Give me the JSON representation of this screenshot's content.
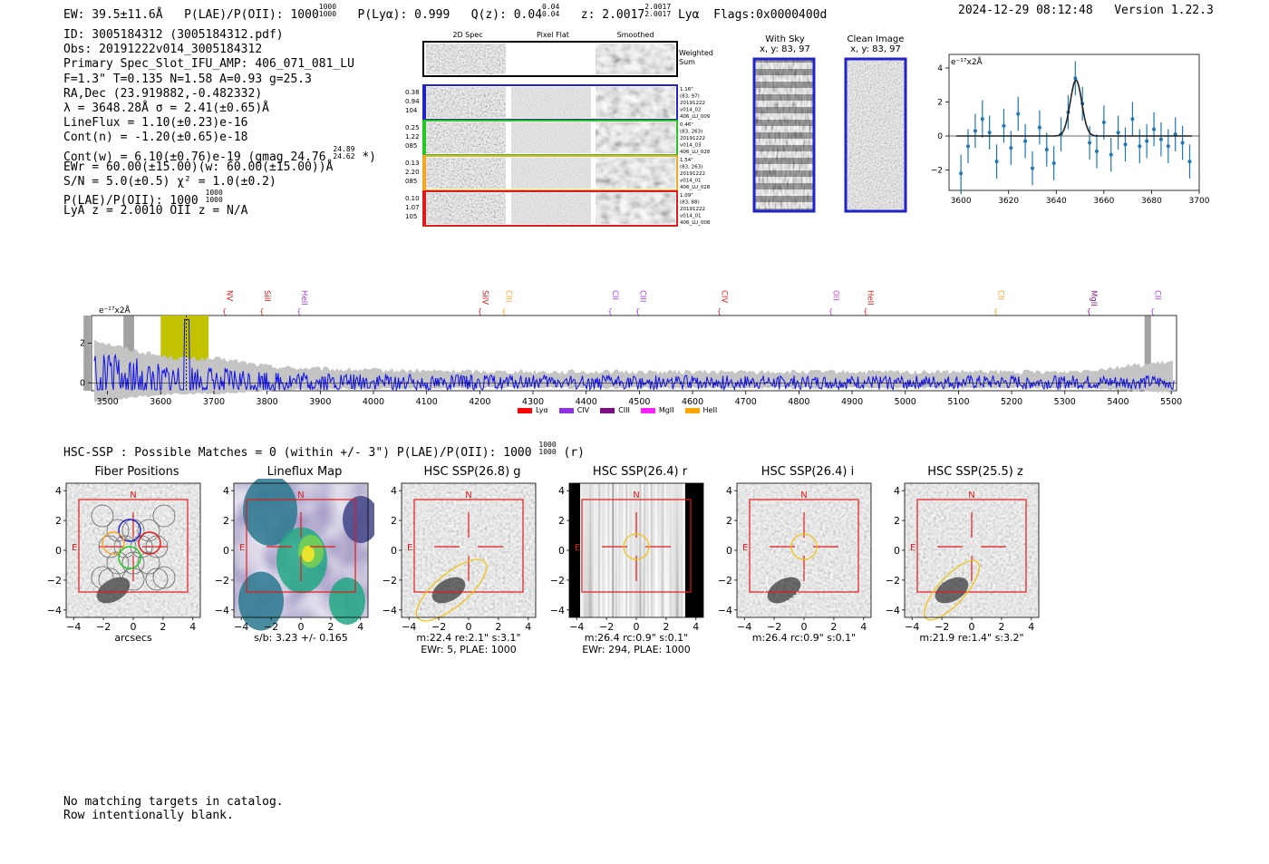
{
  "header": {
    "ew": "EW: 39.5±11.6Å",
    "plae_label": "P(LAE)/P(OII): 1000",
    "plae_hi": "1000",
    "plae_lo": "1000",
    "plya": "P(Lyα): 0.999",
    "qz_label": "Q(z): 0.04",
    "qz_hi": "0.04",
    "qz_lo": "0.04",
    "z_label": "z: 2.0017",
    "z_hi": "2.0017",
    "z_lo": "2.0017",
    "lya": "Lyα",
    "flags": "Flags:0x0000400d",
    "timestamp": "2024-12-29 08:12:48",
    "version": "Version 1.22.3"
  },
  "info": {
    "id": "ID: 3005184312 (3005184312.pdf)",
    "obs": "Obs: 20191222v014_3005184312",
    "primary": "Primary Spec_Slot_IFU_AMP: 406_071_081_LU",
    "fwhm": "F=1.3\"  T=0.135  N=1.58  A=0.93  g=25.3",
    "radec": "RA,Dec (23.919882,-0.482332)",
    "lambda": "λ = 3648.28Å  σ = 2.41(±0.65)Å",
    "lineflux": "LineFlux = 1.10(±0.23)e-16",
    "contn": "Cont(n) = -1.20(±0.65)e-18",
    "contw": "Cont(w) = 6.10(±0.76)e-19 (gmag 24.76",
    "contw_hi": "24.89",
    "contw_lo": "24.62",
    "contw_end": "*)",
    "ewr": "EWr = 60.00(±15.00)(w: 60.00(±15.00))Å",
    "sn": "S/N = 5.0(±0.5)  χ² = 1.0(±0.2)",
    "plae": "P(LAE)/P(OII): 1000",
    "plae_hi": "1000",
    "plae_lo": "1000",
    "lyaz": "LyA z = 2.0010  OII z = N/A"
  },
  "cutouts": {
    "col_2d": "2D Spec",
    "col_flat": "Pixel Flat",
    "col_smooth": "Smoothed",
    "weighted": [
      "Weighted",
      "Sum"
    ],
    "rows": [
      {
        "left": [
          "0.38",
          "0.94",
          "104"
        ],
        "right": [
          "1.16\"",
          "(83, 97)",
          "20191222",
          "v014_02",
          "406_LU_009"
        ],
        "color": "#1f23c8"
      },
      {
        "left": [
          "0.25",
          "1.22",
          "085"
        ],
        "right": [
          "0.46\"",
          "(83, 263)",
          "20191222",
          "v014_03",
          "406_LU_028"
        ],
        "color": "#22c822"
      },
      {
        "left": [
          "0.13",
          "2.20",
          "085"
        ],
        "right": [
          "1.54\"",
          "(83, 263)",
          "20191222",
          "v014_01",
          "406_LU_028"
        ],
        "color": "#f5a623"
      },
      {
        "left": [
          "0.10",
          "1.07",
          "105"
        ],
        "right": [
          "1.09\"",
          "(83, 88)",
          "20191222",
          "v014_01",
          "406_LU_008"
        ],
        "color": "#e01b1b"
      }
    ],
    "with_sky_title": "With Sky",
    "with_sky_xy": "x, y: 83, 97",
    "clean_title": "Clean Image",
    "clean_xy": "x, y: 83, 97"
  },
  "zoom_chart": {
    "unit": "e⁻¹⁷x2Å",
    "xticks": [
      "3600",
      "3620",
      "3640",
      "3660",
      "3680",
      "3700"
    ],
    "yticks": [
      "4",
      "2",
      "0",
      "−2"
    ]
  },
  "chart_data": [
    {
      "type": "scatter",
      "name_hint": "zoom-spectrum",
      "xlim": [
        3595,
        3700
      ],
      "ylim": [
        -3.2,
        4.8
      ],
      "ylabel": "e-17x2Å",
      "x": [
        3600,
        3603,
        3606,
        3609,
        3612,
        3615,
        3618,
        3621,
        3624,
        3627,
        3630,
        3633,
        3636,
        3639,
        3642,
        3645,
        3648,
        3651,
        3654,
        3657,
        3660,
        3663,
        3666,
        3669,
        3672,
        3675,
        3678,
        3681,
        3684,
        3687,
        3690,
        3693,
        3696
      ],
      "y": [
        -2.2,
        -0.6,
        0.3,
        1.0,
        0.2,
        -1.5,
        0.6,
        -0.7,
        1.3,
        -0.3,
        -1.9,
        0.5,
        -0.8,
        -1.6,
        0.1,
        1.4,
        3.4,
        1.9,
        -0.4,
        -0.9,
        0.8,
        -1.1,
        0.2,
        -0.5,
        1.0,
        -0.6,
        -0.3,
        0.4,
        -0.2,
        -0.6,
        0.1,
        -0.4,
        -1.5
      ],
      "yerr": [
        1.1,
        1.0,
        1.0,
        1.1,
        1.0,
        1.0,
        1.0,
        1.0,
        1.0,
        1.0,
        1.0,
        1.0,
        1.0,
        1.0,
        1.0,
        1.0,
        1.0,
        1.0,
        1.0,
        1.0,
        1.0,
        1.0,
        1.0,
        1.0,
        1.0,
        1.0,
        1.0,
        1.0,
        1.0,
        1.0,
        1.0,
        1.0,
        1.0
      ],
      "fit": {
        "center": 3648.28,
        "sigma": 2.41,
        "amplitude": 3.3
      }
    },
    {
      "type": "line",
      "name_hint": "full-spectrum",
      "xlim": [
        3470,
        5510
      ],
      "ylim": [
        -0.4,
        3.4
      ],
      "ylabel": "e-17x2Å",
      "xticks": [
        3500,
        3600,
        3700,
        3800,
        3900,
        4000,
        4100,
        4200,
        4300,
        4400,
        4500,
        4600,
        4700,
        4800,
        4900,
        5000,
        5100,
        5200,
        5300,
        5400,
        5500
      ],
      "yticks": [
        0,
        2
      ],
      "highlight_band": [
        3600,
        3690
      ],
      "line_marker": 3648.28,
      "masked": [
        [
          3530,
          3550
        ],
        [
          3455,
          3468
        ],
        [
          5450,
          5462
        ]
      ],
      "lines": [
        {
          "name": "NV",
          "wave": 3720,
          "color": "#e01b1b"
        },
        {
          "name": "SiII",
          "wave": 3790,
          "color": "#e01b1b"
        },
        {
          "name": "HeII",
          "wave": 3860,
          "color": "#a23ce0"
        },
        {
          "name": "SiIV",
          "wave": 4200,
          "color": "#e01b1b"
        },
        {
          "name": "CIII",
          "wave": 4245,
          "color": "#f5a623"
        },
        {
          "name": "CII",
          "wave": 4445,
          "color": "#a23ce0"
        },
        {
          "name": "CIII",
          "wave": 4497,
          "color": "#a23ce0"
        },
        {
          "name": "CIV",
          "wave": 4650,
          "color": "#e01b1b"
        },
        {
          "name": "OII",
          "wave": 4860,
          "color": "#e040e0"
        },
        {
          "name": "HeII",
          "wave": 4925,
          "color": "#e01b1b"
        },
        {
          "name": "CII",
          "wave": 5170,
          "color": "#f5a623"
        },
        {
          "name": "MgII",
          "wave": 5345,
          "color": "#8a1a8a"
        },
        {
          "name": "CII",
          "wave": 5465,
          "color": "#a23ce0"
        }
      ],
      "legend": [
        {
          "name": "Lyα",
          "color": "#ff0000"
        },
        {
          "name": "CIV",
          "color": "#9130e0"
        },
        {
          "name": "CIII",
          "color": "#7a1080"
        },
        {
          "name": "MgII",
          "color": "#ff20ff"
        },
        {
          "name": "HeII",
          "color": "#ffa500"
        }
      ]
    }
  ],
  "full_chart": {
    "unit": "e⁻¹⁷x2Å"
  },
  "hsc": {
    "summary": "HSC-SSP : Possible Matches = 0 (within +/- 3\")  P(LAE)/P(OII): 1000",
    "summary_hi": "1000",
    "summary_lo": "1000",
    "summary_end": "(r)",
    "panels": [
      {
        "title": "Fiber Positions",
        "cap1": "arcsecs",
        "cap2": ""
      },
      {
        "title": "Lineflux Map",
        "cap1": "s/b: 3.23 +/- 0.165",
        "cap2": ""
      },
      {
        "title": "HSC SSP(26.8) g",
        "cap1": "m:22.4  re:2.1\"  s:3.1\"",
        "cap2": "EWr: 5, PLAE: 1000"
      },
      {
        "title": "HSC SSP(26.4) r",
        "cap1": "m:26.4 rc:0.9\"  s:0.1\"",
        "cap2": "EWr: 294, PLAE: 1000"
      },
      {
        "title": "HSC SSP(26.4) i",
        "cap1": "m:26.4 rc:0.9\"  s:0.1\"",
        "cap2": ""
      },
      {
        "title": "HSC SSP(25.5) z",
        "cap1": "m:21.9  re:1.4\"  s:3.2\"",
        "cap2": ""
      }
    ],
    "ticks": [
      "4",
      "2",
      "0",
      "−2",
      "−4"
    ],
    "xticks": [
      "−4",
      "−2",
      "0",
      "2",
      "4"
    ],
    "north": "N",
    "east": "E"
  },
  "footer": {
    "line1": "No matching targets in catalog.",
    "line2": "Row intentionally blank."
  }
}
